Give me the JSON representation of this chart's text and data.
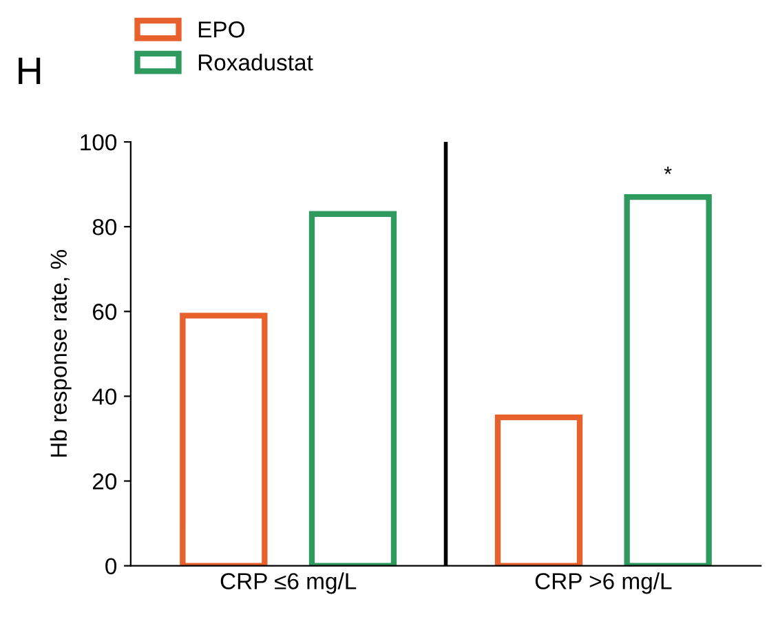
{
  "chart_data": {
    "type": "bar",
    "ylabel": "Hb response rate, %",
    "categories": [
      "CRP ≤6 mg/L",
      "CRP >6 mg/L"
    ],
    "series": [
      {
        "name": "EPO",
        "color": "#e8602c",
        "values": [
          59,
          35
        ]
      },
      {
        "name": "Roxadustat",
        "color": "#2e9a5e",
        "values": [
          83,
          87
        ]
      }
    ],
    "ylim": [
      0,
      100
    ],
    "yticks": [
      0,
      20,
      40,
      60,
      80,
      100
    ],
    "grid": false,
    "legend": "top left",
    "annotations": [
      "H",
      "*"
    ]
  }
}
